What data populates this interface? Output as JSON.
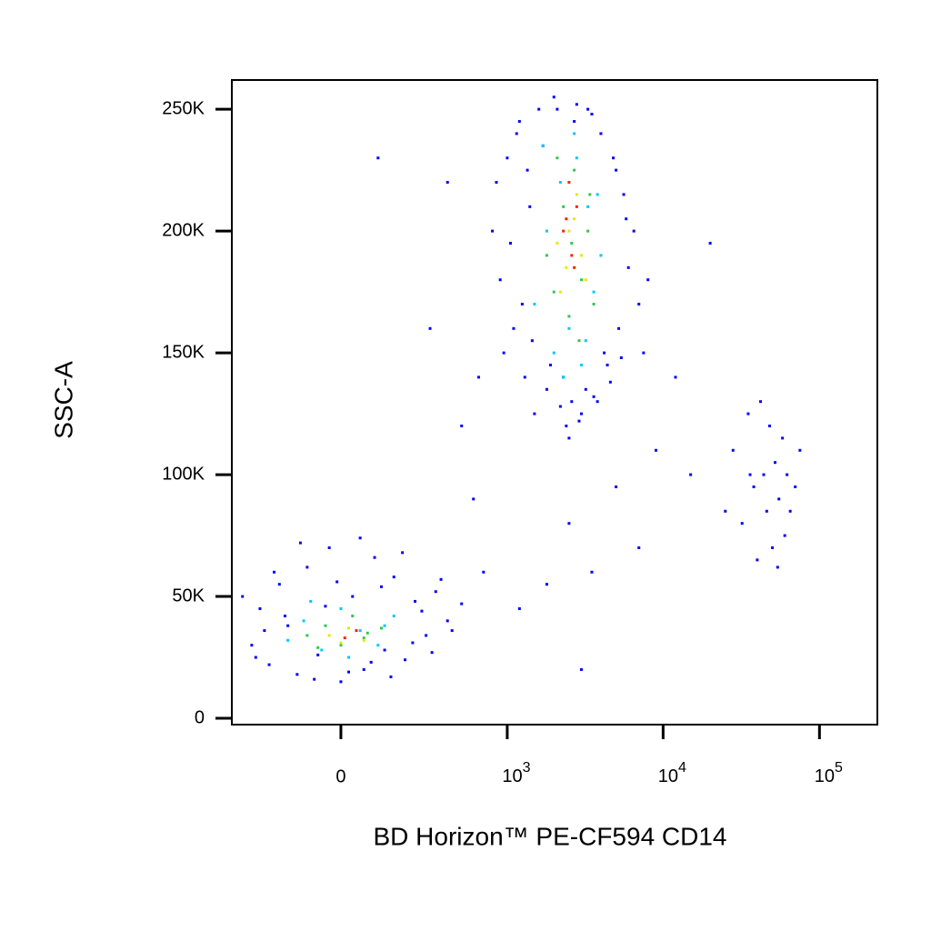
{
  "chart_data": {
    "type": "scatter",
    "x_label": "BD Horizon™ PE-CF594 CD14",
    "y_label": "SSC-A",
    "xscale": "arcsinh",
    "xlim": [
      -416,
      234500
    ],
    "ylim": [
      -2600,
      262000
    ],
    "xticks": [
      0,
      {
        "value": 1000,
        "label": "10",
        "exponent": "3"
      },
      {
        "value": 10000,
        "label": "10",
        "exponent": "4"
      },
      {
        "value": 100000,
        "label": "10",
        "exponent": "5"
      }
    ],
    "yticks": [
      {
        "value": 0,
        "label": "0"
      },
      {
        "value": 50000,
        "label": "50K"
      },
      {
        "value": 100000,
        "label": "100K"
      },
      {
        "value": 150000,
        "label": "150K"
      },
      {
        "value": 200000,
        "label": "200K"
      },
      {
        "value": 250000,
        "label": "250K"
      }
    ],
    "series": [
      {
        "color": "#0000ff",
        "x": [
          -300,
          -260,
          -220,
          -180,
          -150,
          -120,
          -90,
          -60,
          -30,
          0,
          30,
          60,
          90,
          120,
          150,
          190,
          230,
          280,
          330,
          400,
          -280,
          -240,
          -200,
          -160,
          -110,
          -70,
          -40,
          -10,
          20,
          50,
          80,
          110,
          140,
          180,
          220,
          260,
          310,
          360,
          430,
          500,
          800,
          900,
          1000,
          1100,
          1200,
          1300,
          1400,
          1500,
          1600,
          1800,
          2000,
          2200,
          2400,
          2600,
          2800,
          3000,
          3300,
          3600,
          4000,
          4400,
          4800,
          5200,
          5600,
          6000,
          6500,
          7000,
          7500,
          8000,
          850,
          950,
          1050,
          1150,
          1250,
          1350,
          1450,
          1700,
          1900,
          2100,
          2300,
          2500,
          2700,
          2900,
          3200,
          3500,
          3800,
          4200,
          4600,
          5000,
          5400,
          5800,
          28000,
          32000,
          35000,
          38000,
          40000,
          42000,
          44000,
          46000,
          48000,
          50000,
          52000,
          55000,
          58000,
          60000,
          62000,
          65000,
          70000,
          75000,
          36000,
          54000,
          500,
          600,
          700,
          300,
          400,
          650,
          2500,
          3500,
          5000,
          7000,
          9000,
          12000,
          15000,
          20000,
          25000,
          1200,
          1800,
          -350,
          100,
          3000
        ],
        "values": [
          30000,
          45000,
          22000,
          55000,
          38000,
          18000,
          62000,
          26000,
          70000,
          15000,
          50000,
          20000,
          66000,
          28000,
          58000,
          24000,
          48000,
          34000,
          52000,
          40000,
          25000,
          36000,
          60000,
          42000,
          72000,
          16000,
          46000,
          56000,
          19000,
          74000,
          23000,
          54000,
          17000,
          68000,
          31000,
          44000,
          27000,
          57000,
          36000,
          47000,
          200000,
          180000,
          230000,
          160000,
          245000,
          140000,
          210000,
          125000,
          250000,
          135000,
          255000,
          128000,
          120000,
          130000,
          252000,
          125000,
          250000,
          132000,
          240000,
          145000,
          230000,
          160000,
          215000,
          185000,
          200000,
          170000,
          150000,
          180000,
          220000,
          150000,
          195000,
          240000,
          170000,
          225000,
          155000,
          235000,
          145000,
          250000,
          140000,
          115000,
          245000,
          122000,
          135000,
          248000,
          130000,
          150000,
          138000,
          225000,
          148000,
          205000,
          110000,
          80000,
          125000,
          95000,
          65000,
          130000,
          100000,
          85000,
          120000,
          70000,
          105000,
          90000,
          115000,
          75000,
          100000,
          85000,
          95000,
          110000,
          100000,
          62000,
          120000,
          90000,
          60000,
          160000,
          220000,
          140000,
          80000,
          60000,
          95000,
          70000,
          110000,
          140000,
          100000,
          195000,
          85000,
          45000,
          55000,
          50000,
          230000,
          20000
        ]
      },
      {
        "color": "#00c8ff",
        "x": [
          -150,
          -100,
          -50,
          0,
          50,
          100,
          150,
          -80,
          20,
          120,
          1500,
          1800,
          2000,
          2200,
          2500,
          2800,
          3000,
          3300,
          3600,
          4000,
          1700,
          2300,
          2700,
          3200,
          3800
        ],
        "values": [
          32000,
          40000,
          28000,
          45000,
          36000,
          30000,
          42000,
          48000,
          25000,
          38000,
          170000,
          200000,
          150000,
          220000,
          160000,
          230000,
          145000,
          210000,
          175000,
          190000,
          235000,
          140000,
          240000,
          155000,
          215000
        ]
      },
      {
        "color": "#30c850",
        "x": [
          -90,
          -40,
          0,
          30,
          70,
          110,
          -60,
          60,
          1800,
          2000,
          2300,
          2500,
          2700,
          3000,
          3300,
          3600,
          2100,
          2900,
          3400,
          2600
        ],
        "values": [
          34000,
          38000,
          30000,
          42000,
          35000,
          37000,
          29000,
          33000,
          190000,
          175000,
          210000,
          165000,
          225000,
          180000,
          200000,
          170000,
          230000,
          155000,
          215000,
          195000
        ]
      },
      {
        "color": "#e8e800",
        "x": [
          -30,
          20,
          60,
          0,
          2100,
          2400,
          2700,
          3000,
          2200,
          2800,
          2500,
          3200
        ],
        "values": [
          34000,
          37000,
          32000,
          31000,
          195000,
          185000,
          205000,
          190000,
          175000,
          215000,
          200000,
          180000
        ]
      },
      {
        "color": "#ff2000",
        "x": [
          2300,
          2600,
          2800,
          2500,
          2700,
          2400,
          10,
          40
        ],
        "values": [
          200000,
          190000,
          210000,
          220000,
          185000,
          205000,
          33000,
          36000
        ]
      }
    ]
  }
}
